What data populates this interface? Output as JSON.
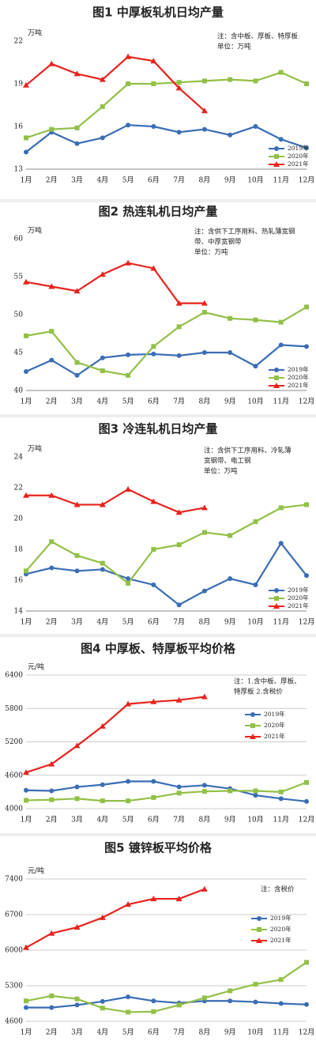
{
  "chart_data": [
    {
      "type": "line",
      "title": "图1  中厚板轧机日均产量",
      "ylabel": "万吨",
      "note": [
        "注：含中板、厚板、特厚板",
        "单位：万吨"
      ],
      "categories": [
        "1月",
        "2月",
        "3月",
        "4月",
        "5月",
        "6月",
        "7月",
        "8月",
        "9月",
        "10月",
        "11月",
        "12月"
      ],
      "ylim": [
        13,
        22
      ],
      "yticks": [
        13,
        16,
        19,
        22
      ],
      "grid": false,
      "legend": "lower right",
      "series": [
        {
          "name": "2019年",
          "color": "#3a6db5",
          "marker": "circle",
          "values": [
            14.2,
            15.6,
            14.8,
            15.2,
            16.1,
            16.0,
            15.6,
            15.8,
            15.4,
            16.0,
            15.1,
            14.5
          ]
        },
        {
          "name": "2020年",
          "color": "#92c047",
          "marker": "square",
          "values": [
            15.2,
            15.8,
            15.9,
            17.4,
            19.0,
            19.0,
            19.1,
            19.2,
            19.3,
            19.2,
            19.8,
            19.0
          ]
        },
        {
          "name": "2021年",
          "color": "#e8231d",
          "marker": "triangle",
          "values": [
            18.9,
            20.4,
            19.7,
            19.3,
            20.9,
            20.6,
            18.7,
            17.1,
            null,
            null,
            null,
            null
          ]
        }
      ]
    },
    {
      "type": "line",
      "title": "图2  热连轧机日均产量",
      "ylabel": "万吨",
      "note": [
        "注：含供下工序用料、热轧薄宽钢",
        "带、中厚宽钢带",
        "单位：万吨"
      ],
      "categories": [
        "1月",
        "2月",
        "3月",
        "4月",
        "5月",
        "6月",
        "7月",
        "8月",
        "9月",
        "10月",
        "11月",
        "12月"
      ],
      "ylim": [
        40,
        60
      ],
      "yticks": [
        40,
        45,
        50,
        55,
        60
      ],
      "grid": false,
      "legend": "lower right",
      "series": [
        {
          "name": "2019年",
          "color": "#3a6db5",
          "marker": "circle",
          "values": [
            42.5,
            44.0,
            42.0,
            44.3,
            44.7,
            44.8,
            44.6,
            45.0,
            45.0,
            43.2,
            46.0,
            45.8
          ]
        },
        {
          "name": "2020年",
          "color": "#92c047",
          "marker": "square",
          "values": [
            47.2,
            47.8,
            43.7,
            42.6,
            42.0,
            45.8,
            48.4,
            50.3,
            49.5,
            49.3,
            49.0,
            51.0
          ]
        },
        {
          "name": "2021年",
          "color": "#e8231d",
          "marker": "triangle",
          "values": [
            54.3,
            53.7,
            53.1,
            55.3,
            56.8,
            56.1,
            51.5,
            51.5,
            null,
            null,
            null,
            null
          ]
        }
      ]
    },
    {
      "type": "line",
      "title": "图3  冷连轧机日均产量",
      "ylabel": "万吨",
      "note": [
        "注：含供下工序用料、冷轧薄",
        "宽钢带、电工钢",
        "单位：万吨"
      ],
      "categories": [
        "1月",
        "2月",
        "3月",
        "4月",
        "5月",
        "6月",
        "7月",
        "8月",
        "9月",
        "10月",
        "11月",
        "12月"
      ],
      "ylim": [
        14,
        24
      ],
      "yticks": [
        14,
        16,
        18,
        20,
        22,
        24
      ],
      "grid": false,
      "legend": "lower right",
      "series": [
        {
          "name": "2019年",
          "color": "#3a6db5",
          "marker": "circle",
          "values": [
            16.4,
            16.8,
            16.6,
            16.7,
            16.1,
            15.7,
            14.4,
            15.3,
            16.1,
            15.7,
            18.4,
            16.3
          ]
        },
        {
          "name": "2020年",
          "color": "#92c047",
          "marker": "square",
          "values": [
            16.6,
            18.5,
            17.6,
            17.1,
            15.8,
            18.0,
            18.3,
            19.1,
            18.9,
            19.8,
            20.7,
            20.9
          ]
        },
        {
          "name": "2021年",
          "color": "#e8231d",
          "marker": "triangle",
          "values": [
            21.5,
            21.5,
            20.9,
            20.9,
            21.9,
            21.1,
            20.4,
            20.7,
            null,
            null,
            null,
            null
          ]
        }
      ]
    },
    {
      "type": "line",
      "title": "图4  中厚板、特厚板平均价格",
      "ylabel": "元/吨",
      "note": [
        "注：1.含中板、厚板、",
        "特厚板  2.含税价"
      ],
      "categories": [
        "1月",
        "2月",
        "3月",
        "4月",
        "5月",
        "6月",
        "7月",
        "8月",
        "9月",
        "10月",
        "11月",
        "12月"
      ],
      "ylim": [
        4000,
        6400
      ],
      "yticks": [
        4000,
        4600,
        5200,
        5800,
        6400
      ],
      "grid": true,
      "legend": "upper right",
      "series": [
        {
          "name": "2019年",
          "color": "#3a6db5",
          "marker": "circle",
          "values": [
            4330,
            4320,
            4390,
            4430,
            4490,
            4490,
            4390,
            4420,
            4360,
            4240,
            4180,
            4130
          ]
        },
        {
          "name": "2020年",
          "color": "#92c047",
          "marker": "square",
          "values": [
            4150,
            4160,
            4180,
            4140,
            4140,
            4200,
            4280,
            4310,
            4320,
            4320,
            4300,
            4470
          ]
        },
        {
          "name": "2021年",
          "color": "#e8231d",
          "marker": "triangle",
          "values": [
            4650,
            4800,
            5130,
            5480,
            5880,
            5920,
            5950,
            6010,
            null,
            null,
            null,
            null
          ]
        }
      ]
    },
    {
      "type": "line",
      "title": "图5  镀锌板平均价格",
      "ylabel": "元/吨",
      "note": [
        "注：含税价"
      ],
      "categories": [
        "1月",
        "2月",
        "3月",
        "4月",
        "5月",
        "6月",
        "7月",
        "8月",
        "9月",
        "10月",
        "11月",
        "12月"
      ],
      "ylim": [
        4600,
        7400
      ],
      "yticks": [
        4600,
        5300,
        6000,
        6700,
        7400
      ],
      "grid": true,
      "legend": "upper right",
      "series": [
        {
          "name": "2019年",
          "color": "#3a6db5",
          "marker": "circle",
          "values": [
            4870,
            4870,
            4920,
            4990,
            5080,
            5000,
            4960,
            5000,
            5000,
            4980,
            4950,
            4930
          ]
        },
        {
          "name": "2020年",
          "color": "#92c047",
          "marker": "square",
          "values": [
            5000,
            5100,
            5040,
            4860,
            4780,
            4790,
            4920,
            5060,
            5200,
            5330,
            5420,
            5760
          ]
        },
        {
          "name": "2021年",
          "color": "#e8231d",
          "marker": "triangle",
          "values": [
            6050,
            6330,
            6450,
            6640,
            6900,
            7010,
            7010,
            7200,
            null,
            null,
            null,
            null
          ]
        }
      ]
    }
  ]
}
